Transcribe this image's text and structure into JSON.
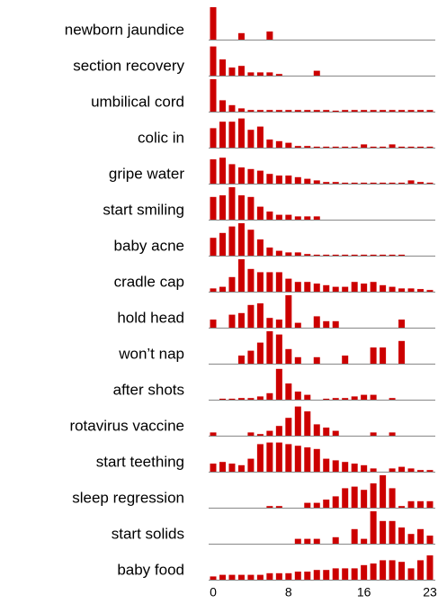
{
  "chart_data": {
    "type": "bar",
    "color": "#cc0000",
    "x": [
      0,
      1,
      2,
      3,
      4,
      5,
      6,
      7,
      8,
      9,
      10,
      11,
      12,
      13,
      14,
      15,
      16,
      17,
      18,
      19,
      20,
      21,
      22,
      23
    ],
    "xlim": [
      0,
      23
    ],
    "xticks": [
      0,
      8,
      16,
      23
    ],
    "series": [
      {
        "name": "newborn jaundice",
        "values": [
          10,
          0,
          0,
          2,
          0,
          0,
          2.5,
          0,
          0,
          0,
          0,
          0,
          0,
          0,
          0,
          0,
          0,
          0,
          0,
          0,
          0,
          0,
          0,
          0
        ]
      },
      {
        "name": "section recovery",
        "values": [
          9,
          5,
          2.5,
          3,
          1,
          1,
          1,
          0.5,
          0,
          0,
          0,
          1.5,
          0,
          0,
          0,
          0,
          0,
          0,
          0,
          0,
          0,
          0,
          0,
          0
        ]
      },
      {
        "name": "umbilical cord",
        "values": [
          10,
          3.5,
          2,
          1,
          0.5,
          0.5,
          0.5,
          0.5,
          0.5,
          0.5,
          0.5,
          0.5,
          0.5,
          0.3,
          0.5,
          0.5,
          0.5,
          0.5,
          0.5,
          0.5,
          0.5,
          0.5,
          0.5,
          0.5
        ]
      },
      {
        "name": "colic in",
        "values": [
          6,
          8,
          8,
          9,
          5.5,
          6.5,
          2.5,
          2,
          1.5,
          0.5,
          0.5,
          0.3,
          0.3,
          0.3,
          0.3,
          0.3,
          1,
          0.3,
          0.3,
          1,
          0.3,
          0.3,
          0.3,
          0.3
        ]
      },
      {
        "name": "gripe water",
        "values": [
          7.5,
          8,
          6,
          5,
          4.5,
          4,
          3,
          2.5,
          2.5,
          2,
          1.5,
          1,
          0.5,
          0.5,
          0.3,
          0.3,
          0.3,
          0.3,
          0.3,
          0.3,
          0.3,
          1,
          0.5,
          0.3
        ]
      },
      {
        "name": "start smiling",
        "values": [
          7,
          7.5,
          10,
          7.5,
          7,
          4,
          2.5,
          1.5,
          1.5,
          1,
          1,
          1,
          0,
          0,
          0,
          0,
          0,
          0,
          0,
          0,
          0,
          0,
          0,
          0
        ]
      },
      {
        "name": "baby acne",
        "values": [
          5.5,
          7,
          9,
          10,
          8,
          5,
          2.5,
          1.5,
          1,
          1,
          0.5,
          0.3,
          0.3,
          0.3,
          0.3,
          0.3,
          0.3,
          0.3,
          0.3,
          0.3,
          0.3,
          0,
          0,
          0
        ]
      },
      {
        "name": "cradle cap",
        "values": [
          1,
          1.5,
          4.5,
          10,
          7,
          6,
          6,
          6,
          4,
          3,
          3,
          2.5,
          2,
          1.5,
          1.5,
          3,
          2.5,
          3,
          2,
          1.5,
          1,
          1,
          0.8,
          0.5
        ]
      },
      {
        "name": "hold head",
        "values": [
          2.5,
          0,
          4,
          4.5,
          7,
          7.5,
          3,
          2.5,
          10,
          1.5,
          0,
          3.5,
          2,
          2,
          0,
          0,
          0,
          0,
          0,
          0,
          2.5,
          0,
          0,
          0
        ]
      },
      {
        "name": "won’t nap",
        "values": [
          0,
          0,
          0,
          2.5,
          4,
          6.5,
          10,
          9,
          4.5,
          2,
          0,
          2,
          0,
          0,
          2.5,
          0,
          0,
          5,
          5,
          0,
          7,
          0,
          0,
          0
        ]
      },
      {
        "name": "after shots",
        "values": [
          0,
          0.3,
          0.3,
          0.5,
          0.5,
          1,
          2,
          9.5,
          5,
          2.5,
          1.5,
          0,
          0.3,
          0.5,
          0.5,
          1,
          1.5,
          1.5,
          0,
          0.5,
          0,
          0,
          0,
          0
        ]
      },
      {
        "name": "rotavirus vaccine",
        "values": [
          1,
          0,
          0,
          0,
          1,
          0.5,
          1.5,
          3,
          5.5,
          9,
          7.5,
          3.5,
          2.5,
          1.5,
          0,
          0,
          0,
          1,
          0,
          1,
          0,
          0,
          0,
          0
        ]
      },
      {
        "name": "start teething",
        "values": [
          2.5,
          3,
          2.5,
          2,
          4,
          8.5,
          9,
          9,
          8.5,
          8,
          7.5,
          7,
          4,
          3.5,
          3,
          2.5,
          2,
          1,
          0,
          1,
          1.5,
          1,
          0.5,
          0.5
        ]
      },
      {
        "name": "sleep regression",
        "values": [
          0,
          0,
          0,
          0,
          0,
          0,
          0.5,
          0.5,
          0,
          0,
          1.5,
          1.5,
          2.5,
          3.5,
          6,
          6.5,
          5.5,
          7.5,
          10,
          6,
          0.5,
          2,
          2,
          2
        ]
      },
      {
        "name": "start solids",
        "values": [
          0,
          0,
          0,
          0,
          0,
          0,
          0,
          0,
          0,
          1.5,
          1.5,
          1.5,
          0,
          2,
          0,
          4.5,
          1.5,
          10,
          7,
          7,
          5,
          3,
          4.5,
          2.5
        ]
      },
      {
        "name": "baby food",
        "values": [
          1,
          1.5,
          1.5,
          1.5,
          1.5,
          1.5,
          2,
          2,
          2,
          2.5,
          2.5,
          3,
          3,
          3.5,
          3.5,
          3.5,
          4.5,
          5,
          6,
          6,
          5.5,
          3.5,
          6,
          7.5
        ]
      }
    ]
  }
}
